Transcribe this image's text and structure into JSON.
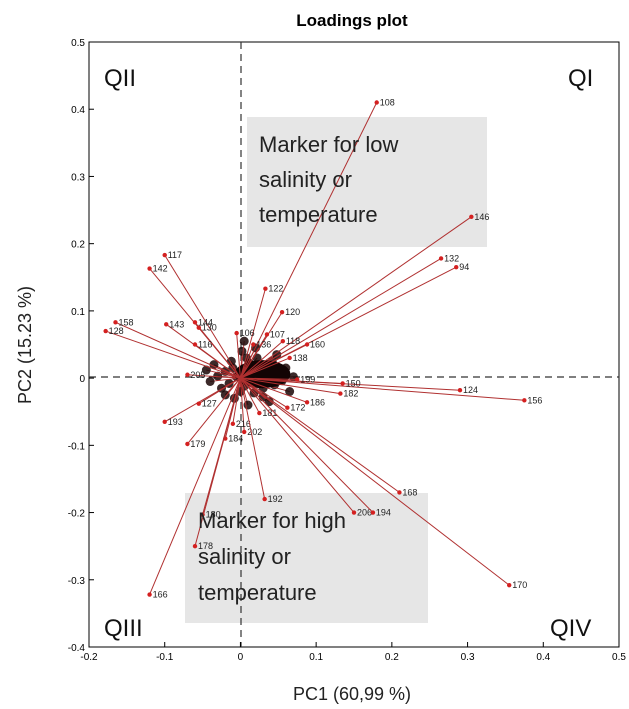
{
  "chart_data": {
    "type": "scatter",
    "title": "Loadings plot",
    "xlabel": "PC1 (60,99 %)",
    "ylabel": "PC2 (15.23 %)",
    "xlim": [
      -0.2,
      0.5
    ],
    "ylim": [
      -0.4,
      0.5
    ],
    "x_ticks": [
      "-0.2",
      "-0.1",
      "0",
      "0.1",
      "0.2",
      "0.3",
      "0.4",
      "0.5"
    ],
    "y_ticks": [
      "-0.4",
      "-0.3",
      "-0.2",
      "-0.1",
      "0",
      "0.1",
      "0.2",
      "0.3",
      "0.4",
      "0.5"
    ],
    "grid": false,
    "reference_lines": "dashed lines at x=0 and y=0",
    "marker_color": "#d42020",
    "line_color": "#b03030",
    "quadrant_labels": {
      "q1": "QI",
      "q2": "QII",
      "q3": "QIII",
      "q4": "QIV"
    },
    "annotations": [
      {
        "id": "low",
        "lines": [
          "Marker for low",
          "salinity or",
          "temperature"
        ]
      },
      {
        "id": "high",
        "lines": [
          "Marker for high",
          "salinity or",
          "temperature"
        ]
      }
    ],
    "points": [
      {
        "label": "108",
        "x": 0.18,
        "y": 0.41
      },
      {
        "label": "146",
        "x": 0.305,
        "y": 0.24
      },
      {
        "label": "132",
        "x": 0.265,
        "y": 0.178
      },
      {
        "label": "94",
        "x": 0.285,
        "y": 0.165
      },
      {
        "label": "122",
        "x": 0.033,
        "y": 0.133
      },
      {
        "label": "120",
        "x": 0.055,
        "y": 0.098
      },
      {
        "label": "107",
        "x": 0.035,
        "y": 0.065
      },
      {
        "label": "118",
        "x": 0.056,
        "y": 0.055
      },
      {
        "label": "160",
        "x": 0.088,
        "y": 0.05
      },
      {
        "label": "138",
        "x": 0.065,
        "y": 0.03
      },
      {
        "label": "106",
        "x": -0.005,
        "y": 0.067
      },
      {
        "label": "136",
        "x": 0.017,
        "y": 0.05
      },
      {
        "label": "117",
        "x": -0.1,
        "y": 0.183
      },
      {
        "label": "142",
        "x": -0.12,
        "y": 0.163
      },
      {
        "label": "158",
        "x": -0.165,
        "y": 0.083
      },
      {
        "label": "128",
        "x": -0.178,
        "y": 0.07
      },
      {
        "label": "143",
        "x": -0.098,
        "y": 0.08
      },
      {
        "label": "144",
        "x": -0.06,
        "y": 0.083
      },
      {
        "label": "130",
        "x": -0.055,
        "y": 0.075
      },
      {
        "label": "116",
        "x": -0.06,
        "y": 0.05
      },
      {
        "label": "205",
        "x": -0.07,
        "y": 0.005
      },
      {
        "label": "124",
        "x": 0.29,
        "y": -0.018
      },
      {
        "label": "156",
        "x": 0.375,
        "y": -0.033
      },
      {
        "label": "150",
        "x": 0.135,
        "y": -0.008
      },
      {
        "label": "182",
        "x": 0.132,
        "y": -0.023
      },
      {
        "label": "199",
        "x": 0.075,
        "y": -0.002
      },
      {
        "label": "186",
        "x": 0.088,
        "y": -0.036
      },
      {
        "label": "172",
        "x": 0.062,
        "y": -0.044
      },
      {
        "label": "181",
        "x": 0.025,
        "y": -0.052
      },
      {
        "label": "202",
        "x": 0.005,
        "y": -0.08
      },
      {
        "label": "216",
        "x": -0.01,
        "y": -0.068
      },
      {
        "label": "193",
        "x": -0.1,
        "y": -0.065
      },
      {
        "label": "179",
        "x": -0.07,
        "y": -0.098
      },
      {
        "label": "184",
        "x": -0.02,
        "y": -0.09
      },
      {
        "label": "127",
        "x": -0.055,
        "y": -0.038
      },
      {
        "label": "192",
        "x": 0.032,
        "y": -0.18
      },
      {
        "label": "168",
        "x": 0.21,
        "y": -0.17
      },
      {
        "label": "206",
        "x": 0.15,
        "y": -0.2
      },
      {
        "label": "194",
        "x": 0.175,
        "y": -0.2
      },
      {
        "label": "180",
        "x": -0.05,
        "y": -0.203
      },
      {
        "label": "178",
        "x": -0.06,
        "y": -0.25
      },
      {
        "label": "170",
        "x": 0.355,
        "y": -0.308
      },
      {
        "label": "166",
        "x": -0.12,
        "y": -0.322
      }
    ],
    "cluster_points": [
      {
        "x": 0.01,
        "y": 0.01
      },
      {
        "x": 0.02,
        "y": -0.005
      },
      {
        "x": -0.01,
        "y": 0.015
      },
      {
        "x": 0.005,
        "y": -0.012
      },
      {
        "x": 0.025,
        "y": 0.012
      },
      {
        "x": -0.015,
        "y": -0.008
      },
      {
        "x": 0.03,
        "y": -0.015
      },
      {
        "x": 0.012,
        "y": 0.022
      },
      {
        "x": -0.005,
        "y": 0.002
      },
      {
        "x": 0.04,
        "y": 0.005
      },
      {
        "x": 0.018,
        "y": -0.022
      },
      {
        "x": -0.02,
        "y": 0.01
      },
      {
        "x": 0.035,
        "y": 0.018
      },
      {
        "x": 0.0,
        "y": -0.02
      },
      {
        "x": 0.045,
        "y": -0.01
      },
      {
        "x": -0.025,
        "y": -0.015
      },
      {
        "x": 0.008,
        "y": 0.03
      },
      {
        "x": 0.05,
        "y": 0.01
      },
      {
        "x": 0.022,
        "y": 0.03
      },
      {
        "x": -0.012,
        "y": 0.025
      },
      {
        "x": 0.03,
        "y": -0.028
      },
      {
        "x": 0.055,
        "y": -0.004
      },
      {
        "x": -0.03,
        "y": 0.003
      },
      {
        "x": 0.015,
        "y": 0.0
      },
      {
        "x": 0.028,
        "y": 0.004
      },
      {
        "x": -0.008,
        "y": -0.03
      },
      {
        "x": 0.042,
        "y": 0.025
      },
      {
        "x": 0.06,
        "y": 0.015
      },
      {
        "x": 0.002,
        "y": 0.04
      },
      {
        "x": -0.035,
        "y": 0.02
      },
      {
        "x": 0.038,
        "y": -0.035
      },
      {
        "x": 0.01,
        "y": -0.04
      },
      {
        "x": -0.02,
        "y": -0.025
      },
      {
        "x": 0.065,
        "y": -0.02
      },
      {
        "x": 0.048,
        "y": 0.035
      },
      {
        "x": -0.04,
        "y": -0.005
      },
      {
        "x": 0.02,
        "y": 0.045
      },
      {
        "x": 0.07,
        "y": 0.002
      },
      {
        "x": -0.045,
        "y": 0.012
      },
      {
        "x": 0.005,
        "y": 0.055
      }
    ]
  }
}
